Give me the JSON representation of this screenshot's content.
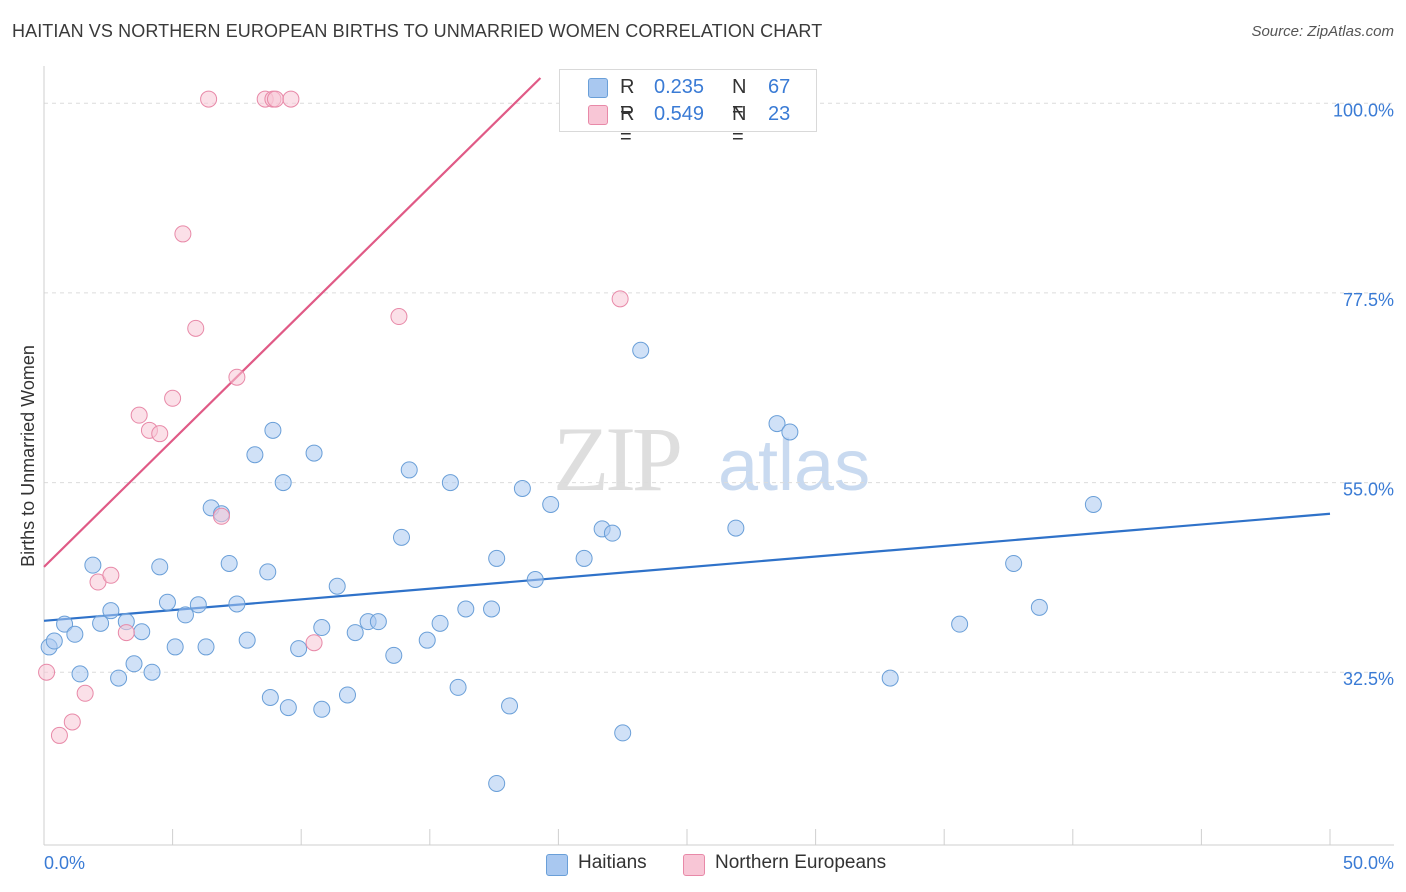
{
  "title": "HAITIAN VS NORTHERN EUROPEAN BIRTHS TO UNMARRIED WOMEN CORRELATION CHART",
  "source": "Source: ZipAtlas.com",
  "watermark": {
    "zip": "ZIP",
    "atlas": "atlas"
  },
  "legend": {
    "rows": [
      {
        "r_label": "R =",
        "r_value": "0.235",
        "n_label": "N =",
        "n_value": "67",
        "color": "#a9c8f0",
        "border": "#6a9fd8"
      },
      {
        "r_label": "R =",
        "r_value": "0.549",
        "n_label": "N =",
        "n_value": "23",
        "color": "#f8c6d6",
        "border": "#e889a8"
      }
    ]
  },
  "bottom_legend": [
    {
      "label": "Haitians",
      "color": "#a9c8f0",
      "border": "#6a9fd8"
    },
    {
      "label": "Northern Europeans",
      "color": "#f8c6d6",
      "border": "#e889a8"
    }
  ],
  "chart_data": {
    "type": "scatter",
    "title": "HAITIAN VS NORTHERN EUROPEAN BIRTHS TO UNMARRIED WOMEN CORRELATION CHART",
    "xlabel": "",
    "ylabel": "Births to Unmarried Women",
    "xlim": [
      0,
      50
    ],
    "ylim": [
      12,
      103
    ],
    "x_tick_labels": [
      "0.0%",
      "50.0%"
    ],
    "y_ticks": [
      32.5,
      55.0,
      77.5,
      100.0
    ],
    "y_tick_labels": [
      "32.5%",
      "55.0%",
      "77.5%",
      "100.0%"
    ],
    "grid": true,
    "legend_placement": "top-center",
    "series": [
      {
        "name": "Haitians",
        "color": "#6a9fd8",
        "fill": "#a9c8f0",
        "trend": {
          "x": [
            0,
            50
          ],
          "y": [
            38.6,
            51.3
          ],
          "color": "#2f72c9"
        },
        "points": [
          [
            0.2,
            35.5
          ],
          [
            0.4,
            36.2
          ],
          [
            0.8,
            38.2
          ],
          [
            1.2,
            37.0
          ],
          [
            1.4,
            32.3
          ],
          [
            1.9,
            45.2
          ],
          [
            2.2,
            38.3
          ],
          [
            2.6,
            39.8
          ],
          [
            2.9,
            31.8
          ],
          [
            3.2,
            38.5
          ],
          [
            3.5,
            33.5
          ],
          [
            3.8,
            37.3
          ],
          [
            4.2,
            32.5
          ],
          [
            4.5,
            45.0
          ],
          [
            4.8,
            40.8
          ],
          [
            5.1,
            35.5
          ],
          [
            5.5,
            39.3
          ],
          [
            6.0,
            40.5
          ],
          [
            6.3,
            35.5
          ],
          [
            6.5,
            52.0
          ],
          [
            6.9,
            51.3
          ],
          [
            7.2,
            45.4
          ],
          [
            7.5,
            40.6
          ],
          [
            7.9,
            36.3
          ],
          [
            8.2,
            58.3
          ],
          [
            8.7,
            44.4
          ],
          [
            8.8,
            29.5
          ],
          [
            8.9,
            61.2
          ],
          [
            9.3,
            55.0
          ],
          [
            9.5,
            28.3
          ],
          [
            9.9,
            35.3
          ],
          [
            10.5,
            58.5
          ],
          [
            10.8,
            37.8
          ],
          [
            10.8,
            28.1
          ],
          [
            11.4,
            42.7
          ],
          [
            11.8,
            29.8
          ],
          [
            12.1,
            37.2
          ],
          [
            12.6,
            38.5
          ],
          [
            13.0,
            38.5
          ],
          [
            13.6,
            34.5
          ],
          [
            13.9,
            48.5
          ],
          [
            14.2,
            56.5
          ],
          [
            14.9,
            36.3
          ],
          [
            15.4,
            38.3
          ],
          [
            15.8,
            55.0
          ],
          [
            16.1,
            30.7
          ],
          [
            16.4,
            40.0
          ],
          [
            17.4,
            40.0
          ],
          [
            17.6,
            46.0
          ],
          [
            17.6,
            19.3
          ],
          [
            18.1,
            28.5
          ],
          [
            18.6,
            54.3
          ],
          [
            19.1,
            43.5
          ],
          [
            19.7,
            52.4
          ],
          [
            21.0,
            46.0
          ],
          [
            21.7,
            49.5
          ],
          [
            22.1,
            49.0
          ],
          [
            22.5,
            25.3
          ],
          [
            23.2,
            70.7
          ],
          [
            26.9,
            49.6
          ],
          [
            28.5,
            62.0
          ],
          [
            29.0,
            61.0
          ],
          [
            32.9,
            31.8
          ],
          [
            35.6,
            38.2
          ],
          [
            37.7,
            45.4
          ],
          [
            38.7,
            40.2
          ],
          [
            40.8,
            52.4
          ]
        ]
      },
      {
        "name": "Northern Europeans",
        "color": "#e889a8",
        "fill": "#f8c6d6",
        "trend": {
          "x": [
            0,
            19.3
          ],
          "y": [
            45.0,
            103.0
          ],
          "color": "#e05a86"
        },
        "points": [
          [
            0.1,
            32.5
          ],
          [
            0.6,
            25.0
          ],
          [
            1.1,
            26.6
          ],
          [
            1.6,
            30.0
          ],
          [
            2.1,
            43.2
          ],
          [
            2.6,
            44.0
          ],
          [
            3.2,
            37.2
          ],
          [
            3.7,
            63.0
          ],
          [
            4.1,
            61.2
          ],
          [
            4.5,
            60.8
          ],
          [
            5.0,
            65.0
          ],
          [
            5.4,
            84.5
          ],
          [
            5.9,
            73.3
          ],
          [
            6.4,
            100.5
          ],
          [
            6.9,
            51.0
          ],
          [
            7.5,
            67.5
          ],
          [
            8.6,
            100.5
          ],
          [
            8.9,
            100.5
          ],
          [
            9.0,
            100.5
          ],
          [
            9.6,
            100.5
          ],
          [
            10.5,
            36.0
          ],
          [
            13.8,
            74.7
          ],
          [
            22.4,
            76.8
          ]
        ]
      }
    ]
  }
}
